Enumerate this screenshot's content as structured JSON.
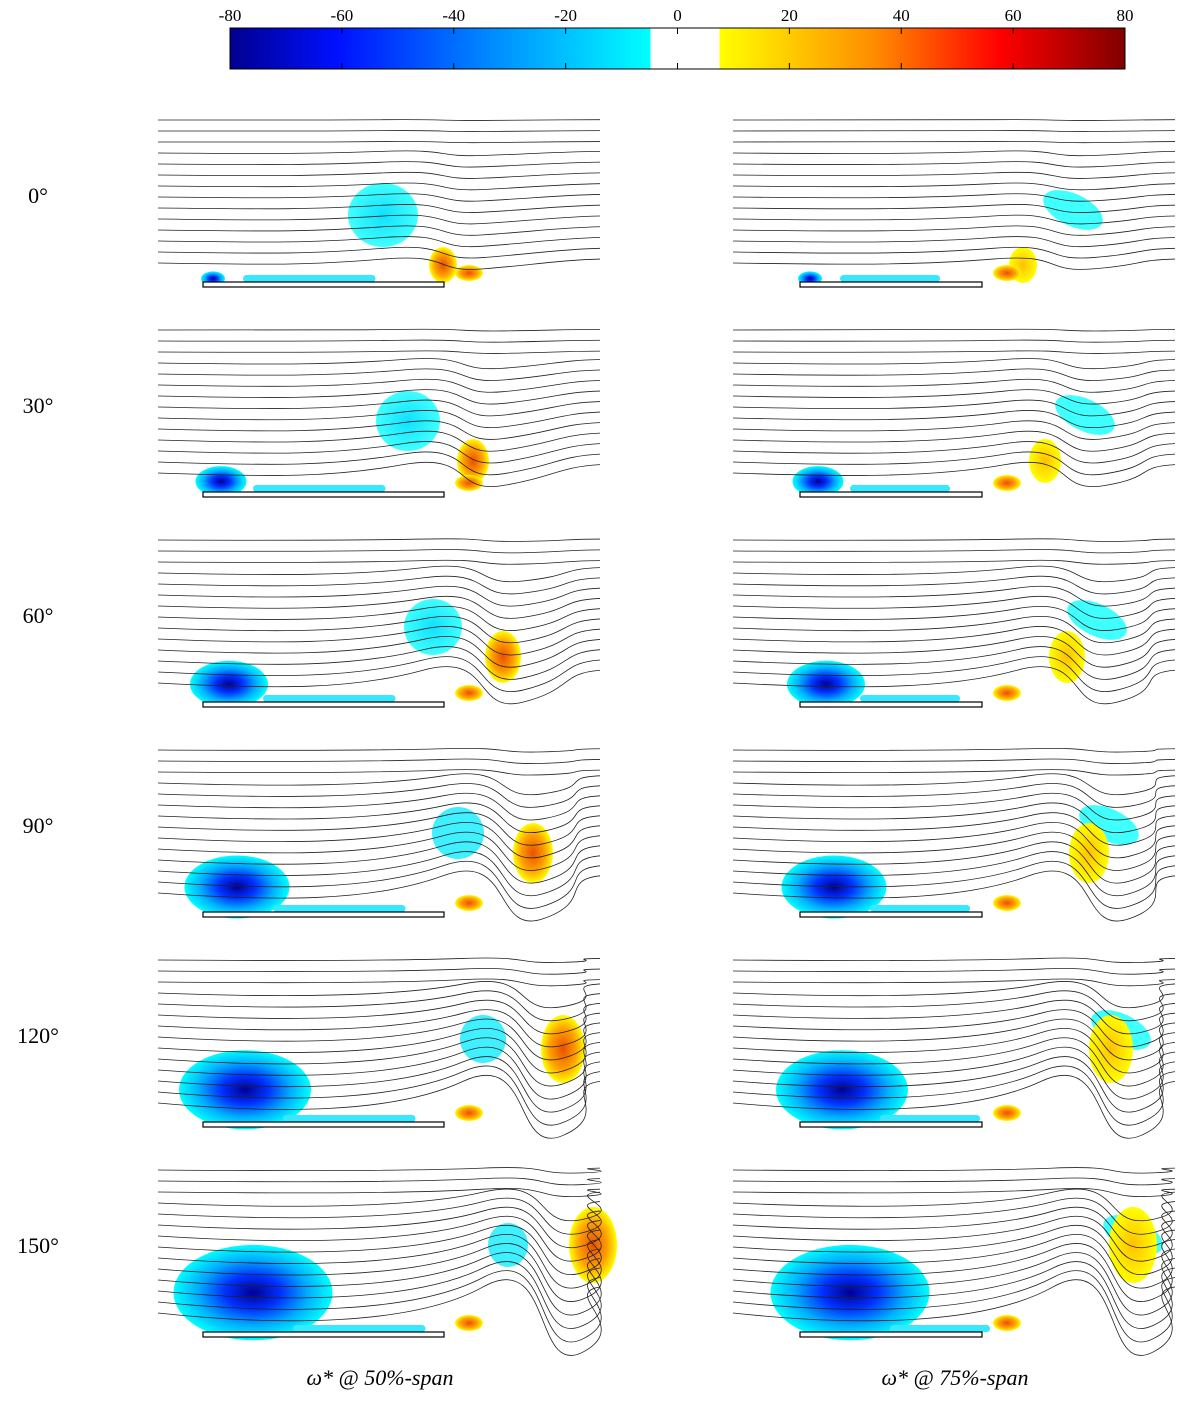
{
  "colorbar": {
    "lim": [
      -80,
      80
    ],
    "ticks": [
      -80,
      -60,
      -40,
      -20,
      0,
      20,
      40,
      60,
      80
    ]
  },
  "rows": [
    "0°",
    "30°",
    "60°",
    "90°",
    "120°",
    "150°"
  ],
  "columns": [
    "ω* @ 50%-span",
    "ω* @ 75%-span"
  ]
}
